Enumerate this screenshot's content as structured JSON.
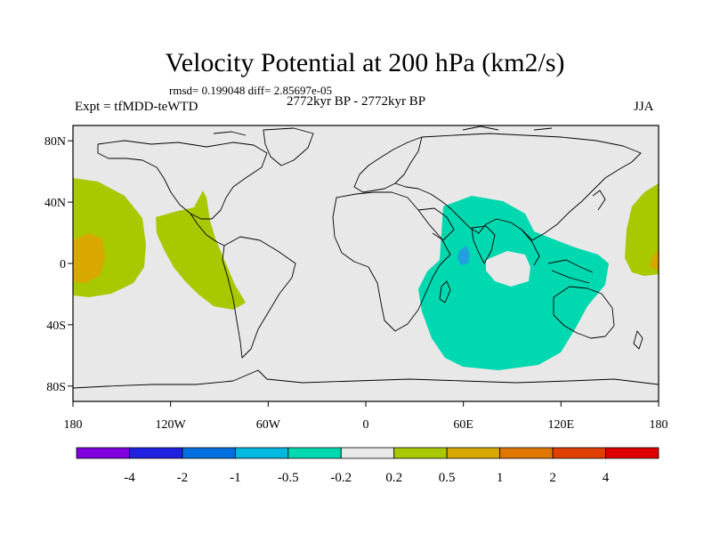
{
  "header": {
    "title": "Velocity Potential at 200 hPa (km2/s)",
    "stats": "rmsd= 0.199048 diff= 2.85697e-05",
    "left_label": "Expt = tfMDD-teWTD",
    "center_label": "2772kyr BP - 2772kyr BP",
    "right_label": "JJA"
  },
  "map": {
    "projection": "cylindrical-equidistant",
    "lon_range": [
      -180,
      180
    ],
    "lat_range": [
      -90,
      90
    ],
    "x_ticks": [
      "180",
      "120W",
      "60W",
      "0",
      "60E",
      "120E",
      "180"
    ],
    "y_ticks": [
      "80N",
      "40N",
      "0",
      "40S",
      "80S"
    ],
    "background_color": "#e8e8e8",
    "coastline_color": "#000000"
  },
  "anomaly_regions": [
    {
      "name": "central-pacific-positive",
      "level_range": "0.2 to 0.5",
      "color": "#a8c800"
    },
    {
      "name": "central-pacific-core",
      "level_range": "0.5 to 1",
      "color": "#d8a800"
    },
    {
      "name": "east-pacific-positive",
      "level_range": "0.2 to 0.5",
      "color": "#a8c800"
    },
    {
      "name": "indian-ocean-negative",
      "level_range": "-0.5 to -0.2",
      "color": "#00d8b0"
    },
    {
      "name": "arabian-sea-core",
      "level_range": "-1 to -0.5",
      "color": "#20a0e0"
    },
    {
      "name": "west-pacific-positive",
      "level_range": "0.2 to 0.5",
      "color": "#a8c800"
    },
    {
      "name": "west-pacific-core",
      "level_range": "0.5 to 1",
      "color": "#d8a800"
    }
  ],
  "colorbar": {
    "colors": [
      "#8000e0",
      "#2020e0",
      "#0070e0",
      "#00b8e0",
      "#00d8b0",
      "#e8e8e8",
      "#a8c800",
      "#d8a800",
      "#e07800",
      "#e04000",
      "#e00000"
    ],
    "labels": [
      "-4",
      "-2",
      "-1",
      "-0.5",
      "-0.2",
      "0.2",
      "0.5",
      "1",
      "2",
      "4"
    ]
  }
}
